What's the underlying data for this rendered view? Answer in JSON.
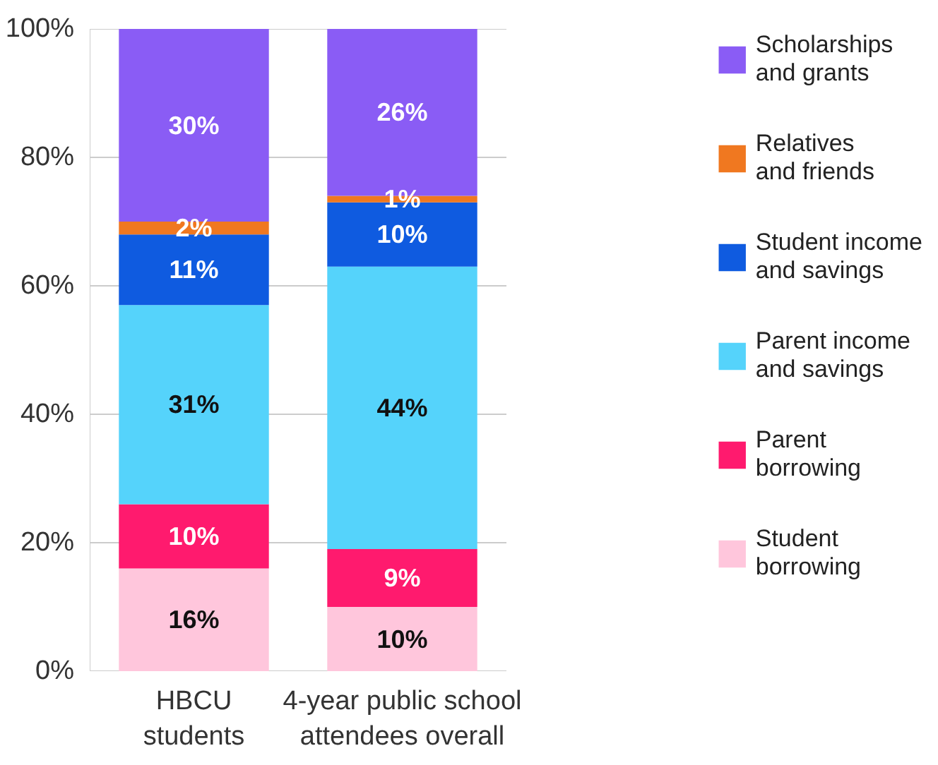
{
  "chart_data": {
    "type": "bar",
    "stacked": true,
    "categories": [
      "HBCU\nstudents",
      "4-year public school\nattendees overall"
    ],
    "ylim": [
      0,
      100
    ],
    "yticks": [
      {
        "value": 0,
        "label": "0%"
      },
      {
        "value": 20,
        "label": "20%"
      },
      {
        "value": 40,
        "label": "40%"
      },
      {
        "value": 60,
        "label": "60%"
      },
      {
        "value": 80,
        "label": "80%"
      },
      {
        "value": 100,
        "label": "100%"
      }
    ],
    "grid": "y",
    "legend": "right",
    "series": [
      {
        "name": "Student\nborrowing",
        "color": "#ffc6dc",
        "values": [
          16,
          10
        ],
        "value_labels": [
          "16%",
          "10%"
        ]
      },
      {
        "name": "Parent\nborrowing",
        "color": "#ff1a6e",
        "values": [
          10,
          9
        ],
        "value_labels": [
          "10%",
          "9%"
        ]
      },
      {
        "name": "Parent income\nand savings",
        "color": "#55d3fb",
        "values": [
          31,
          44
        ],
        "value_labels": [
          "31%",
          "44%"
        ]
      },
      {
        "name": "Student income\nand savings",
        "color": "#0f5be0",
        "values": [
          11,
          10
        ],
        "value_labels": [
          "11%",
          "10%"
        ]
      },
      {
        "name": "Relatives\nand friends",
        "color": "#f07820",
        "values": [
          2,
          1
        ],
        "value_labels": [
          "2%",
          "1%"
        ]
      },
      {
        "name": "Scholarships\nand grants",
        "color": "#8a5cf5",
        "values": [
          30,
          26
        ],
        "value_labels": [
          "30%",
          "26%"
        ]
      }
    ]
  }
}
